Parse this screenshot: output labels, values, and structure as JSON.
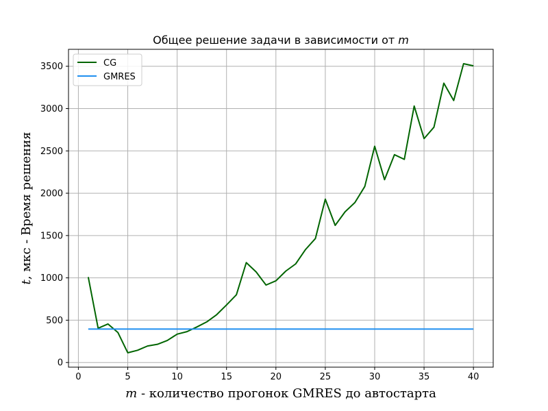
{
  "chart_data": {
    "type": "line",
    "title": "Общее решение задачи в зависимости от m",
    "title_parts": {
      "prefix": "Общее решение задачи в зависимости от ",
      "var": "m"
    },
    "xlabel": "m - количество прогонок GMRES до автостарта",
    "xlabel_parts": {
      "var": "m",
      "text": " - количество прогонок GMRES до автостарта"
    },
    "ylabel": "t, мкс - Время решения",
    "ylabel_parts": {
      "var": "t",
      "text": ", мкс - Время решения"
    },
    "xlim": [
      -1,
      42
    ],
    "ylim": [
      -55,
      3700
    ],
    "xticks": [
      0,
      5,
      10,
      15,
      20,
      25,
      30,
      35,
      40
    ],
    "yticks": [
      0,
      500,
      1000,
      1500,
      2000,
      2500,
      3000,
      3500
    ],
    "grid": true,
    "legend_position": "top-left",
    "series": [
      {
        "name": "CG",
        "color": "#006400",
        "x": [
          1,
          2,
          3,
          4,
          5,
          6,
          7,
          8,
          9,
          10,
          11,
          12,
          13,
          14,
          15,
          16,
          17,
          18,
          19,
          20,
          21,
          22,
          23,
          24,
          25,
          26,
          27,
          28,
          29,
          30,
          31,
          32,
          33,
          34,
          35,
          36,
          37,
          38,
          39,
          40
        ],
        "y": [
          1010,
          405,
          455,
          355,
          115,
          145,
          195,
          215,
          260,
          335,
          365,
          420,
          480,
          565,
          680,
          800,
          1180,
          1070,
          915,
          965,
          1080,
          1165,
          1335,
          1465,
          1930,
          1620,
          1780,
          1890,
          2080,
          2555,
          2160,
          2455,
          2400,
          3030,
          2645,
          2780,
          3300,
          3095,
          3530,
          3505
        ]
      },
      {
        "name": "GMRES",
        "color": "#1f8ff0",
        "x": [
          1,
          40
        ],
        "y": [
          395,
          395
        ]
      }
    ]
  }
}
